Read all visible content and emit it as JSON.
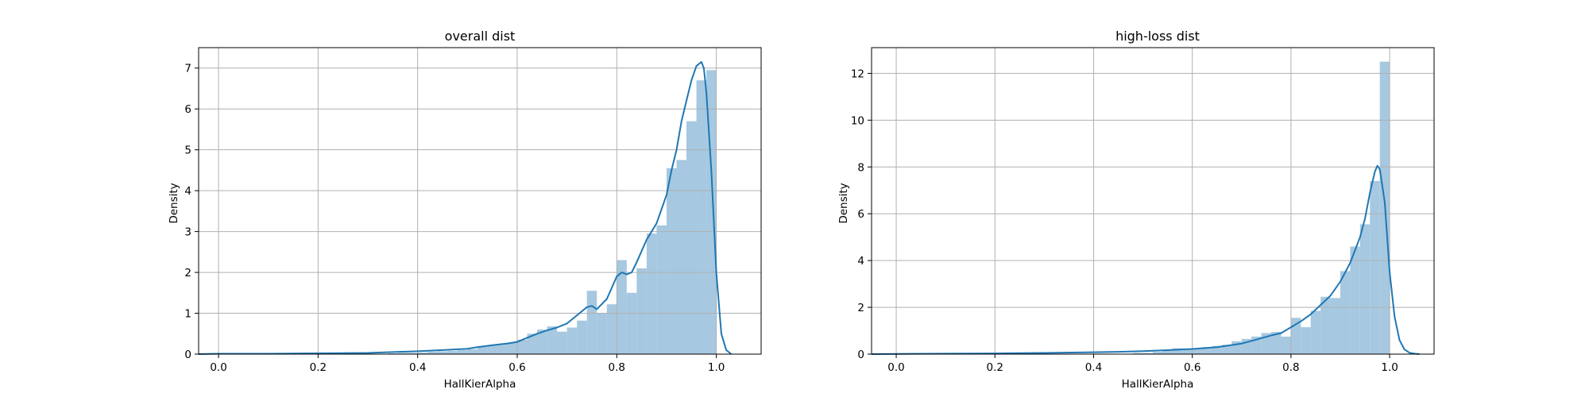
{
  "chart_data": [
    {
      "type": "bar",
      "title": "overall dist",
      "xlabel": "HallKierAlpha",
      "ylabel": "Density",
      "xlim": [
        -0.04,
        1.09
      ],
      "ylim": [
        0,
        7.5
      ],
      "xticks": [
        0.0,
        0.2,
        0.4,
        0.6,
        0.8,
        1.0
      ],
      "xtick_labels": [
        "0.0",
        "0.2",
        "0.4",
        "0.6",
        "0.8",
        "1.0"
      ],
      "yticks": [
        0,
        1,
        2,
        3,
        4,
        5,
        6,
        7
      ],
      "ytick_labels": [
        "0",
        "1",
        "2",
        "3",
        "4",
        "5",
        "6",
        "7"
      ],
      "grid": true,
      "bar_color": "#a6c8e0",
      "line_color": "#1f77b4",
      "bins": {
        "edges": [
          0.34,
          0.36,
          0.38,
          0.4,
          0.42,
          0.44,
          0.46,
          0.48,
          0.5,
          0.52,
          0.54,
          0.56,
          0.58,
          0.6,
          0.62,
          0.64,
          0.66,
          0.68,
          0.7,
          0.72,
          0.74,
          0.76,
          0.78,
          0.8,
          0.82,
          0.84,
          0.86,
          0.88,
          0.9,
          0.92,
          0.94,
          0.96,
          0.98,
          1.0
        ],
        "values": [
          0.02,
          0.03,
          0.03,
          0.04,
          0.06,
          0.07,
          0.08,
          0.1,
          0.12,
          0.18,
          0.22,
          0.25,
          0.28,
          0.35,
          0.5,
          0.6,
          0.68,
          0.55,
          0.65,
          0.82,
          1.55,
          1.0,
          1.22,
          2.3,
          1.5,
          2.1,
          2.95,
          3.15,
          4.55,
          4.75,
          5.7,
          6.7,
          6.95
        ]
      },
      "kde": {
        "x": [
          -0.04,
          0.0,
          0.1,
          0.2,
          0.3,
          0.35,
          0.4,
          0.45,
          0.5,
          0.52,
          0.55,
          0.58,
          0.6,
          0.62,
          0.64,
          0.66,
          0.68,
          0.7,
          0.72,
          0.74,
          0.75,
          0.76,
          0.78,
          0.8,
          0.81,
          0.82,
          0.83,
          0.84,
          0.86,
          0.88,
          0.9,
          0.91,
          0.92,
          0.93,
          0.94,
          0.95,
          0.96,
          0.97,
          0.975,
          0.98,
          0.99,
          1.0,
          1.01,
          1.02,
          1.03
        ],
        "y": [
          0.0,
          0.01,
          0.01,
          0.02,
          0.03,
          0.05,
          0.07,
          0.1,
          0.13,
          0.17,
          0.22,
          0.26,
          0.3,
          0.4,
          0.5,
          0.58,
          0.65,
          0.75,
          0.95,
          1.15,
          1.18,
          1.1,
          1.35,
          1.9,
          2.0,
          1.95,
          2.0,
          2.25,
          2.8,
          3.2,
          3.9,
          4.5,
          5.0,
          5.7,
          6.2,
          6.7,
          7.05,
          7.15,
          7.0,
          6.4,
          4.5,
          2.0,
          0.5,
          0.1,
          0.0
        ]
      }
    },
    {
      "type": "bar",
      "title": "high-loss dist",
      "xlabel": "HallKierAlpha",
      "ylabel": "Density",
      "xlim": [
        -0.05,
        1.09
      ],
      "ylim": [
        0,
        13.1
      ],
      "xticks": [
        0.0,
        0.2,
        0.4,
        0.6,
        0.8,
        1.0
      ],
      "xtick_labels": [
        "0.0",
        "0.2",
        "0.4",
        "0.6",
        "0.8",
        "1.0"
      ],
      "yticks": [
        0,
        2,
        4,
        6,
        8,
        10,
        12
      ],
      "ytick_labels": [
        "0",
        "2",
        "4",
        "6",
        "8",
        "10",
        "12"
      ],
      "grid": true,
      "bar_color": "#a6c8e0",
      "line_color": "#1f77b4",
      "bins": {
        "edges": [
          0.48,
          0.5,
          0.52,
          0.54,
          0.56,
          0.58,
          0.6,
          0.62,
          0.64,
          0.66,
          0.68,
          0.7,
          0.72,
          0.74,
          0.76,
          0.78,
          0.8,
          0.82,
          0.84,
          0.86,
          0.88,
          0.9,
          0.92,
          0.94,
          0.96,
          0.98,
          1.0
        ],
        "values": [
          0.05,
          0.05,
          0.1,
          0.15,
          0.25,
          0.2,
          0.25,
          0.3,
          0.35,
          0.4,
          0.55,
          0.65,
          0.75,
          0.9,
          0.95,
          0.75,
          1.55,
          1.15,
          1.85,
          2.45,
          2.4,
          3.55,
          4.6,
          5.55,
          7.4,
          12.5
        ]
      },
      "kde": {
        "x": [
          -0.05,
          0.0,
          0.1,
          0.2,
          0.3,
          0.4,
          0.45,
          0.5,
          0.55,
          0.6,
          0.65,
          0.7,
          0.73,
          0.76,
          0.78,
          0.8,
          0.82,
          0.84,
          0.86,
          0.88,
          0.9,
          0.92,
          0.94,
          0.95,
          0.96,
          0.97,
          0.975,
          0.98,
          0.99,
          1.0,
          1.01,
          1.02,
          1.03,
          1.04,
          1.05,
          1.06
        ],
        "y": [
          0.0,
          0.01,
          0.02,
          0.03,
          0.05,
          0.08,
          0.1,
          0.13,
          0.17,
          0.22,
          0.3,
          0.45,
          0.62,
          0.8,
          0.9,
          1.15,
          1.4,
          1.7,
          2.1,
          2.5,
          3.1,
          3.9,
          5.0,
          5.8,
          6.9,
          7.8,
          8.05,
          7.9,
          6.5,
          3.5,
          1.6,
          0.6,
          0.2,
          0.06,
          0.02,
          0.0
        ]
      }
    }
  ]
}
